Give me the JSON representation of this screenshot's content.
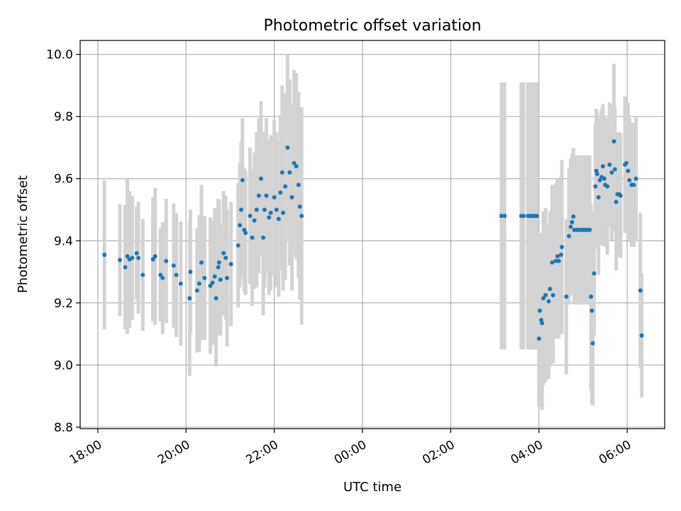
{
  "chart_data": {
    "type": "scatter",
    "title": "Photometric offset variation",
    "xlabel": "UTC time",
    "ylabel": "Photometric offset",
    "x_unit": "hours (UTC, continuous across midnight)",
    "xlim": [
      17.6,
      30.85
    ],
    "ylim": [
      8.795,
      10.045
    ],
    "x_ticks": [
      {
        "value": 18,
        "label": "18:00"
      },
      {
        "value": 20,
        "label": "20:00"
      },
      {
        "value": 22,
        "label": "22:00"
      },
      {
        "value": 24,
        "label": "00:00"
      },
      {
        "value": 26,
        "label": "02:00"
      },
      {
        "value": 28,
        "label": "04:00"
      },
      {
        "value": 30,
        "label": "06:00"
      }
    ],
    "y_ticks": [
      {
        "value": 8.8,
        "label": "8.8"
      },
      {
        "value": 9.0,
        "label": "9.0"
      },
      {
        "value": 9.2,
        "label": "9.2"
      },
      {
        "value": 9.4,
        "label": "9.4"
      },
      {
        "value": 9.6,
        "label": "9.6"
      },
      {
        "value": 9.8,
        "label": "9.8"
      },
      {
        "value": 10.0,
        "label": "10.0"
      }
    ],
    "grid": true,
    "marker_color": "#1f77b4",
    "errorbar_color": "#d3d3d3",
    "points": [
      [
        18.15,
        9.355,
        0.24
      ],
      [
        18.5,
        9.338,
        0.18
      ],
      [
        18.62,
        9.315,
        0.2
      ],
      [
        18.67,
        9.35,
        0.25
      ],
      [
        18.72,
        9.34,
        0.22
      ],
      [
        18.78,
        9.345,
        0.2
      ],
      [
        18.88,
        9.36,
        0.15
      ],
      [
        18.92,
        9.345,
        0.18
      ],
      [
        19.02,
        9.29,
        0.18
      ],
      [
        19.25,
        9.34,
        0.2
      ],
      [
        19.3,
        9.35,
        0.22
      ],
      [
        19.42,
        9.29,
        0.15
      ],
      [
        19.47,
        9.28,
        0.18
      ],
      [
        19.55,
        9.335,
        0.2
      ],
      [
        19.72,
        9.32,
        0.2
      ],
      [
        19.78,
        9.29,
        0.2
      ],
      [
        19.88,
        9.262,
        0.2
      ],
      [
        20.08,
        9.215,
        0.25
      ],
      [
        20.1,
        9.3,
        0.2
      ],
      [
        20.25,
        9.24,
        0.2
      ],
      [
        20.3,
        9.262,
        0.22
      ],
      [
        20.35,
        9.33,
        0.25
      ],
      [
        20.42,
        9.28,
        0.2
      ],
      [
        20.55,
        9.255,
        0.22
      ],
      [
        20.6,
        9.265,
        0.2
      ],
      [
        20.65,
        9.285,
        0.22
      ],
      [
        20.68,
        9.215,
        0.22
      ],
      [
        20.73,
        9.315,
        0.22
      ],
      [
        20.75,
        9.33,
        0.2
      ],
      [
        20.78,
        9.275,
        0.18
      ],
      [
        20.85,
        9.36,
        0.2
      ],
      [
        20.9,
        9.345,
        0.2
      ],
      [
        20.93,
        9.28,
        0.22
      ],
      [
        21.02,
        9.325,
        0.2
      ],
      [
        21.18,
        9.385,
        0.2
      ],
      [
        21.22,
        9.45,
        0.2
      ],
      [
        21.25,
        9.5,
        0.22
      ],
      [
        21.28,
        9.595,
        0.2
      ],
      [
        21.32,
        9.435,
        0.2
      ],
      [
        21.35,
        9.425,
        0.2
      ],
      [
        21.45,
        9.48,
        0.22
      ],
      [
        21.5,
        9.41,
        0.22
      ],
      [
        21.55,
        9.465,
        0.22
      ],
      [
        21.6,
        9.5,
        0.25
      ],
      [
        21.65,
        9.545,
        0.25
      ],
      [
        21.7,
        9.6,
        0.25
      ],
      [
        21.75,
        9.41,
        0.25
      ],
      [
        21.78,
        9.5,
        0.25
      ],
      [
        21.82,
        9.545,
        0.25
      ],
      [
        21.88,
        9.475,
        0.25
      ],
      [
        21.92,
        9.49,
        0.25
      ],
      [
        22.0,
        9.54,
        0.25
      ],
      [
        22.05,
        9.5,
        0.25
      ],
      [
        22.1,
        9.47,
        0.25
      ],
      [
        22.14,
        9.555,
        0.25
      ],
      [
        22.18,
        9.62,
        0.28
      ],
      [
        22.2,
        9.49,
        0.25
      ],
      [
        22.25,
        9.575,
        0.3
      ],
      [
        22.3,
        9.7,
        0.3
      ],
      [
        22.35,
        9.62,
        0.3
      ],
      [
        22.4,
        9.54,
        0.3
      ],
      [
        22.45,
        9.65,
        0.3
      ],
      [
        22.5,
        9.64,
        0.3
      ],
      [
        22.55,
        9.58,
        0.3
      ],
      [
        22.58,
        9.51,
        0.3
      ],
      [
        22.62,
        9.48,
        0.35
      ],
      [
        27.15,
        9.48,
        0.43
      ],
      [
        27.22,
        9.48,
        0.43
      ],
      [
        27.6,
        9.48,
        0.43
      ],
      [
        27.65,
        9.48,
        0.43
      ],
      [
        27.75,
        9.48,
        0.43
      ],
      [
        27.8,
        9.48,
        0.43
      ],
      [
        27.85,
        9.48,
        0.43
      ],
      [
        27.9,
        9.48,
        0.43
      ],
      [
        27.95,
        9.48,
        0.43
      ],
      [
        28.0,
        9.085,
        0.22
      ],
      [
        28.02,
        9.175,
        0.25
      ],
      [
        28.05,
        9.145,
        0.25
      ],
      [
        28.07,
        9.135,
        0.28
      ],
      [
        28.1,
        9.215,
        0.28
      ],
      [
        28.15,
        9.225,
        0.28
      ],
      [
        28.22,
        9.205,
        0.25
      ],
      [
        28.25,
        9.245,
        0.25
      ],
      [
        28.3,
        9.33,
        0.25
      ],
      [
        28.32,
        9.225,
        0.22
      ],
      [
        28.38,
        9.335,
        0.25
      ],
      [
        28.42,
        9.35,
        0.25
      ],
      [
        28.45,
        9.335,
        0.25
      ],
      [
        28.5,
        9.355,
        0.25
      ],
      [
        28.52,
        9.38,
        0.28
      ],
      [
        28.62,
        9.22,
        0.25
      ],
      [
        28.68,
        9.415,
        0.22
      ],
      [
        28.72,
        9.445,
        0.22
      ],
      [
        28.75,
        9.46,
        0.22
      ],
      [
        28.78,
        9.478,
        0.22
      ],
      [
        28.8,
        9.435,
        0.24
      ],
      [
        28.85,
        9.435,
        0.24
      ],
      [
        28.9,
        9.435,
        0.24
      ],
      [
        28.95,
        9.435,
        0.24
      ],
      [
        29.0,
        9.435,
        0.24
      ],
      [
        29.05,
        9.435,
        0.24
      ],
      [
        29.1,
        9.435,
        0.24
      ],
      [
        29.15,
        9.435,
        0.24
      ],
      [
        29.18,
        9.22,
        0.3
      ],
      [
        29.2,
        9.175,
        0.3
      ],
      [
        29.22,
        9.07,
        0.2
      ],
      [
        29.25,
        9.295,
        0.2
      ],
      [
        29.28,
        9.575,
        0.2
      ],
      [
        29.3,
        9.625,
        0.2
      ],
      [
        29.32,
        9.615,
        0.2
      ],
      [
        29.35,
        9.54,
        0.25
      ],
      [
        29.38,
        9.595,
        0.2
      ],
      [
        29.42,
        9.605,
        0.22
      ],
      [
        29.45,
        9.64,
        0.2
      ],
      [
        29.48,
        9.6,
        0.2
      ],
      [
        29.5,
        9.58,
        0.2
      ],
      [
        29.55,
        9.575,
        0.22
      ],
      [
        29.6,
        9.645,
        0.2
      ],
      [
        29.65,
        9.62,
        0.22
      ],
      [
        29.7,
        9.72,
        0.25
      ],
      [
        29.72,
        9.63,
        0.2
      ],
      [
        29.75,
        9.525,
        0.22
      ],
      [
        29.78,
        9.55,
        0.2
      ],
      [
        29.82,
        9.55,
        0.2
      ],
      [
        29.85,
        9.545,
        0.2
      ],
      [
        29.95,
        9.645,
        0.22
      ],
      [
        29.98,
        9.65,
        0.2
      ],
      [
        30.02,
        9.625,
        0.22
      ],
      [
        30.05,
        9.595,
        0.2
      ],
      [
        30.1,
        9.58,
        0.2
      ],
      [
        30.15,
        9.58,
        0.2
      ],
      [
        30.2,
        9.6,
        0.2
      ],
      [
        30.3,
        9.24,
        0.25
      ],
      [
        30.33,
        9.095,
        0.2
      ]
    ]
  }
}
